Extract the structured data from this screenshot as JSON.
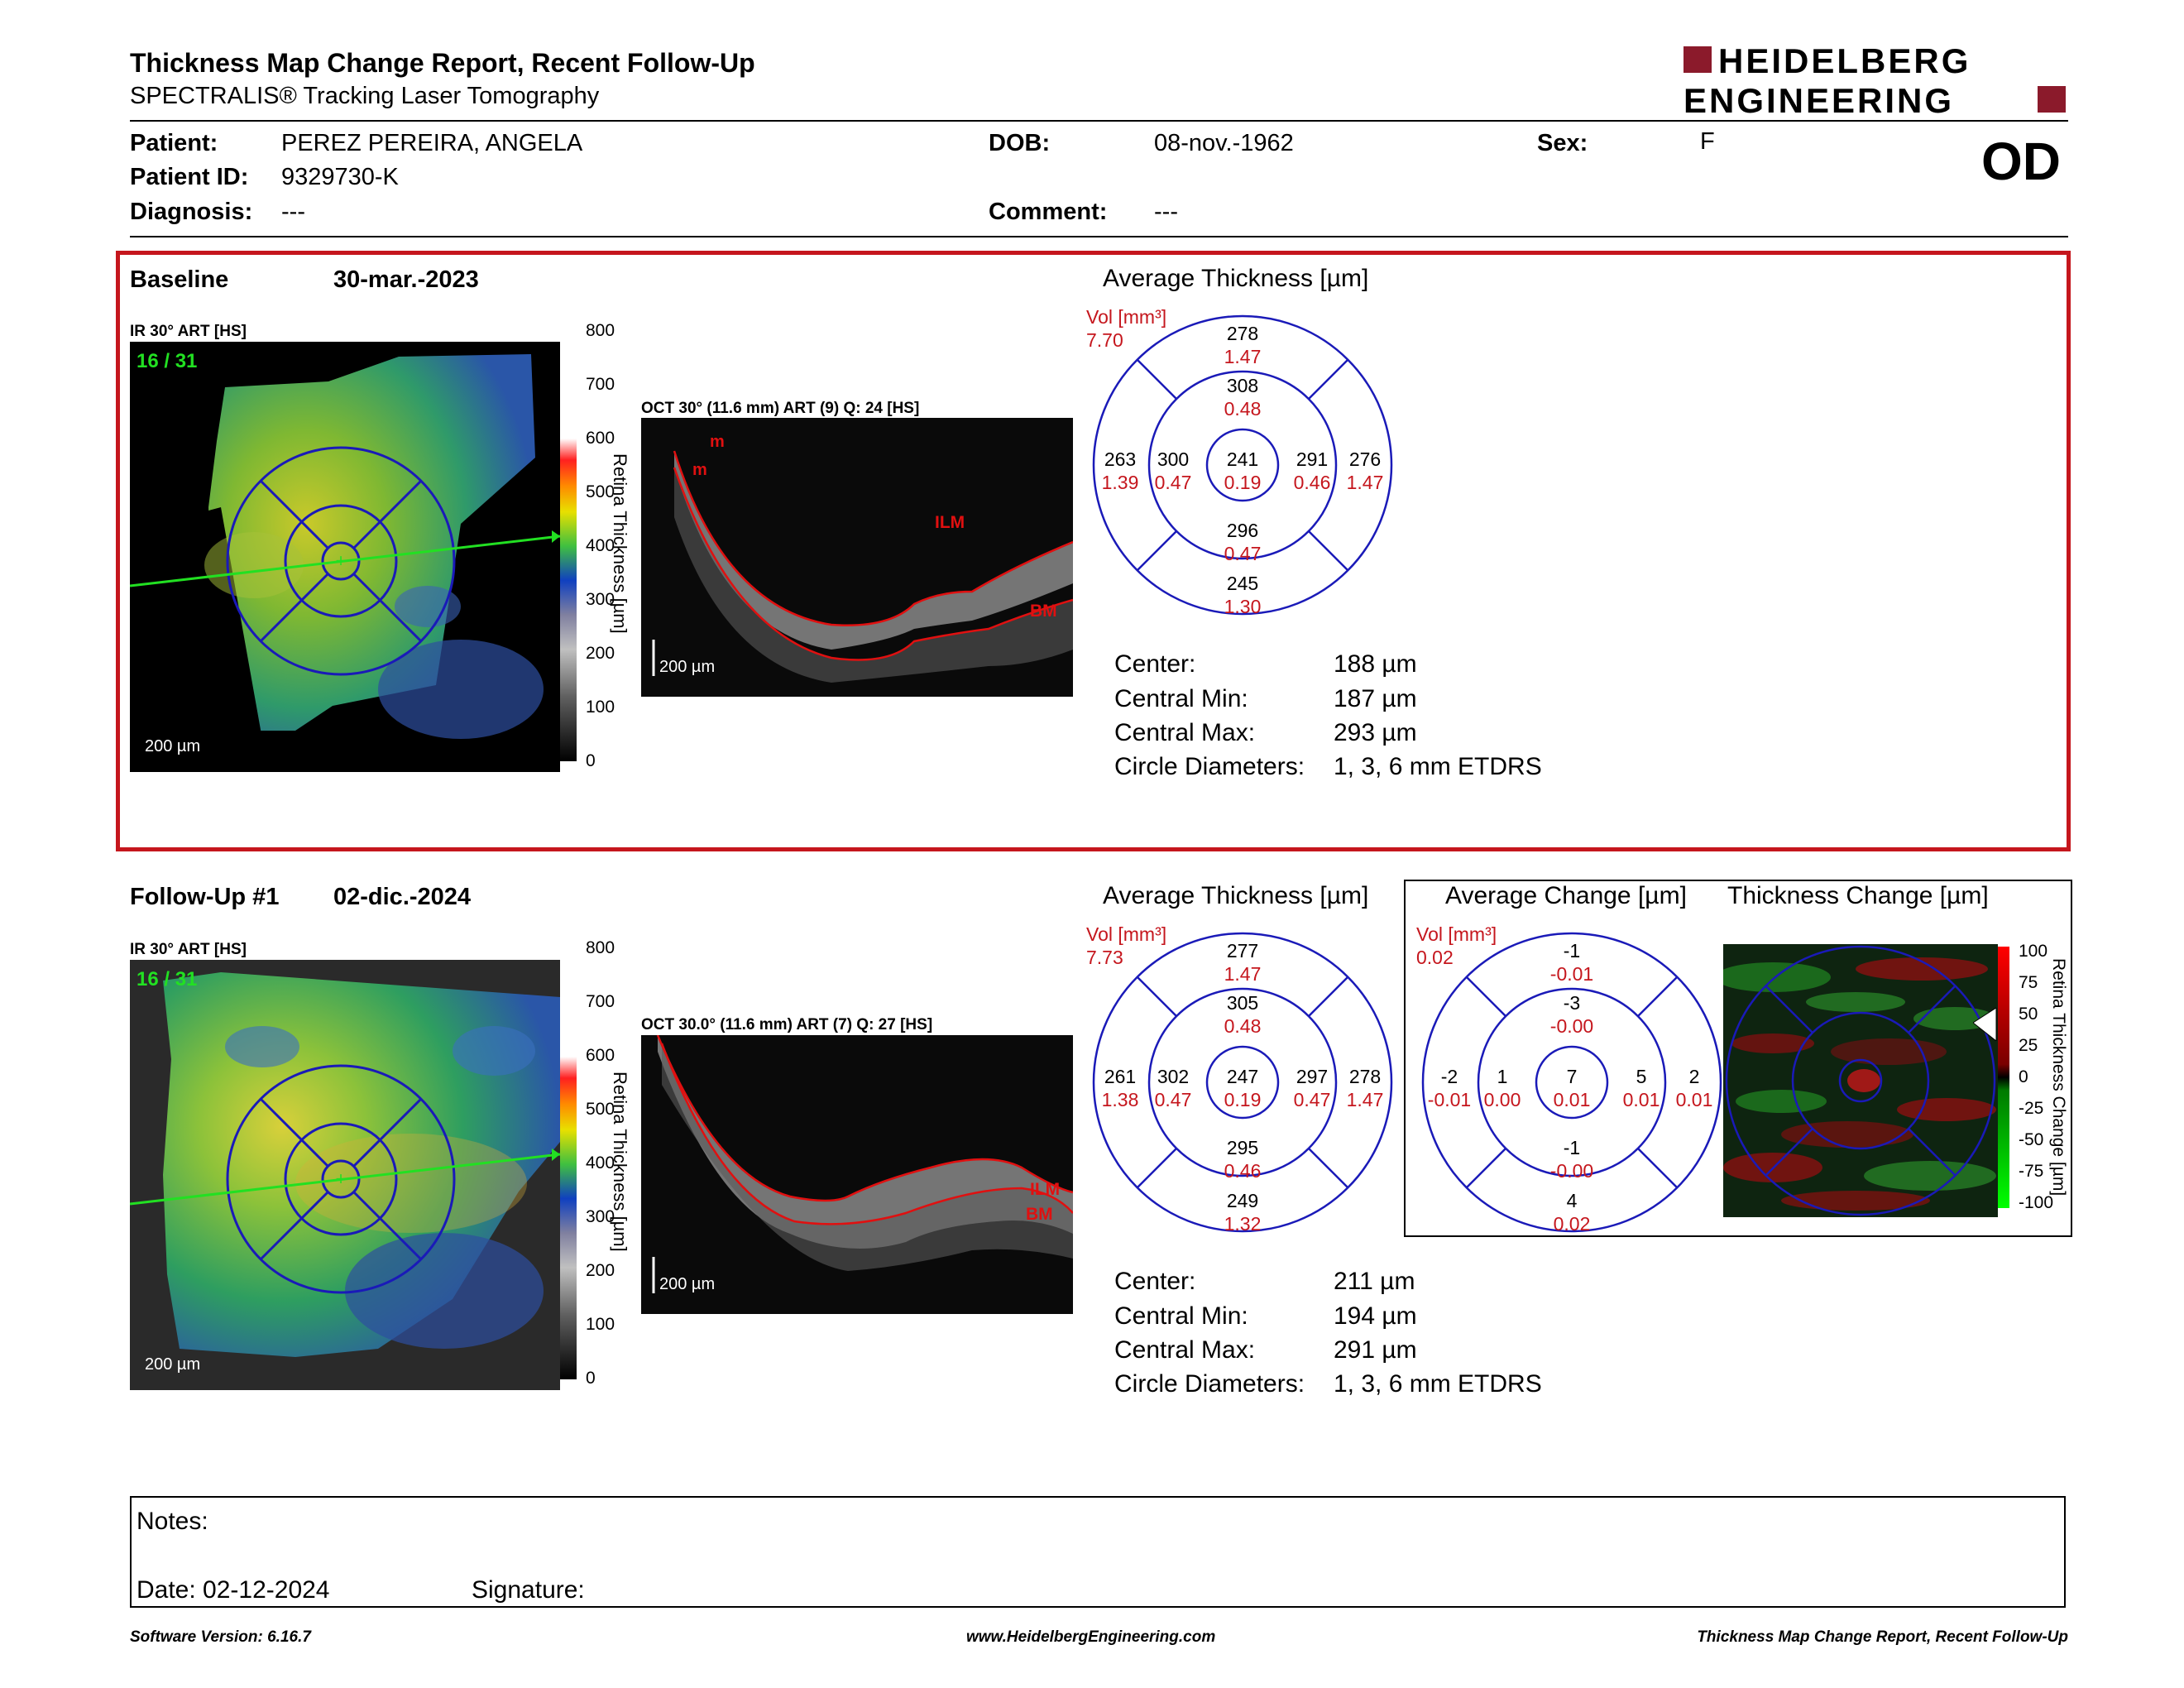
{
  "header": {
    "title": "Thickness Map Change Report, Recent Follow-Up",
    "subtitle": "SPECTRALIS® Tracking Laser Tomography",
    "logo_line1": "HEIDELBERG",
    "logo_line2": "ENGINEERING",
    "eye": "OD"
  },
  "patient": {
    "patient_label": "Patient:",
    "patient_name": "PEREZ PEREIRA, ANGELA",
    "id_label": "Patient ID:",
    "id_value": "9329730-K",
    "diagnosis_label": "Diagnosis:",
    "diagnosis_value": "---",
    "dob_label": "DOB:",
    "dob_value": "08-nov.-1962",
    "comment_label": "Comment:",
    "comment_value": "---",
    "sex_label": "Sex:",
    "sex_value": "F"
  },
  "baseline": {
    "label": "Baseline",
    "date": "30-mar.-2023",
    "ir_label": "IR 30° ART [HS]",
    "ir_counter": "16 / 31",
    "ir_scale_bar": "200 µm",
    "oct_label": "OCT 30° (11.6 mm) ART (9) Q: 24 [HS]",
    "oct_scale_bar": "200 µm",
    "oct_marker_ilm": "ILM",
    "oct_marker_bm": "BM",
    "oct_marker_m1": "m",
    "oct_marker_m2": "m",
    "color_scale_ticks": [
      "800",
      "700",
      "600",
      "500",
      "400",
      "300",
      "200",
      "100",
      "0"
    ],
    "color_scale_title": "Retina Thickness [µm]",
    "avg_title": "Average Thickness [µm]",
    "vol_label": "Vol [mm³]",
    "vol_value": "7.70",
    "etdrs": {
      "outer_sup": [
        "278",
        "1.47"
      ],
      "inner_sup": [
        "308",
        "0.48"
      ],
      "outer_temp": [
        "263",
        "1.39"
      ],
      "inner_temp": [
        "300",
        "0.47"
      ],
      "center": [
        "241",
        "0.19"
      ],
      "inner_nas": [
        "291",
        "0.46"
      ],
      "outer_nas": [
        "276",
        "1.47"
      ],
      "inner_inf": [
        "296",
        "0.47"
      ],
      "outer_inf": [
        "245",
        "1.30"
      ]
    },
    "stats": {
      "center_label": "Center:",
      "center_value": "188 µm",
      "min_label": "Central Min:",
      "min_value": "187 µm",
      "max_label": "Central Max:",
      "max_value": "293 µm",
      "circ_label": "Circle Diameters:",
      "circ_value": "1, 3, 6 mm ETDRS"
    }
  },
  "followup": {
    "label": "Follow-Up #1",
    "date": "02-dic.-2024",
    "ir_label": "IR 30° ART [HS]",
    "ir_counter": "16 / 31",
    "ir_scale_bar": "200 µm",
    "oct_label": "OCT 30.0° (11.6 mm) ART (7) Q: 27 [HS]",
    "oct_scale_bar": "200 µm",
    "oct_marker_ilm": "ILM",
    "oct_marker_bm": "BM",
    "color_scale_ticks": [
      "800",
      "700",
      "600",
      "500",
      "400",
      "300",
      "200",
      "100",
      "0"
    ],
    "color_scale_title": "Retina Thickness [µm]",
    "avg_title": "Average Thickness [µm]",
    "vol_label": "Vol [mm³]",
    "vol_value": "7.73",
    "etdrs": {
      "outer_sup": [
        "277",
        "1.47"
      ],
      "inner_sup": [
        "305",
        "0.48"
      ],
      "outer_temp": [
        "261",
        "1.38"
      ],
      "inner_temp": [
        "302",
        "0.47"
      ],
      "center": [
        "247",
        "0.19"
      ],
      "inner_nas": [
        "297",
        "0.47"
      ],
      "outer_nas": [
        "278",
        "1.47"
      ],
      "inner_inf": [
        "295",
        "0.46"
      ],
      "outer_inf": [
        "249",
        "1.32"
      ]
    },
    "change_title": "Average Change [µm]",
    "change_vol_label": "Vol [mm³]",
    "change_vol_value": "0.02",
    "change_etdrs": {
      "outer_sup": [
        "-1",
        "-0.01"
      ],
      "inner_sup": [
        "-3",
        "-0.00"
      ],
      "outer_temp": [
        "-2",
        "-0.01"
      ],
      "inner_temp": [
        "1",
        "0.00"
      ],
      "center": [
        "7",
        "0.01"
      ],
      "inner_nas": [
        "5",
        "0.01"
      ],
      "outer_nas": [
        "2",
        "0.01"
      ],
      "inner_inf": [
        "-1",
        "-0.00"
      ],
      "outer_inf": [
        "4",
        "0.02"
      ]
    },
    "thickness_change_title": "Thickness Change [µm]",
    "change_scale_ticks": [
      "100",
      "75",
      "50",
      "25",
      "0",
      "-25",
      "-50",
      "-75",
      "-100"
    ],
    "change_scale_title": "Retina Thickness Change [µm]",
    "stats": {
      "center_label": "Center:",
      "center_value": "211 µm",
      "min_label": "Central Min:",
      "min_value": "194 µm",
      "max_label": "Central Max:",
      "max_value": "291 µm",
      "circ_label": "Circle Diameters:",
      "circ_value": "1, 3, 6 mm ETDRS"
    }
  },
  "notes": {
    "notes_label": "Notes:",
    "date_label": "Date: 02-12-2024",
    "signature_label": "Signature:"
  },
  "footer": {
    "left": "Software Version: 6.16.7",
    "center": "www.HeidelbergEngineering.com",
    "right": "Thickness Map Change Report, Recent Follow-Up"
  },
  "colors": {
    "accent_red": "#c5161d",
    "logo_red": "#8b1a2b",
    "etdrs_blue": "#1a1ab8"
  }
}
